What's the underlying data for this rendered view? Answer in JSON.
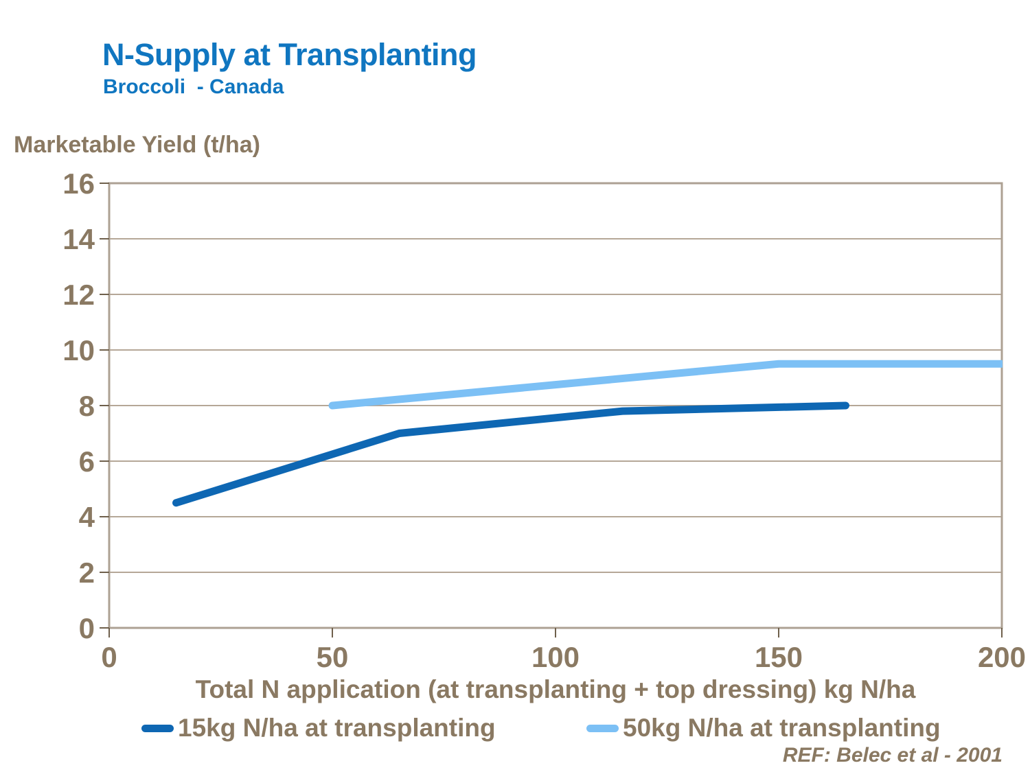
{
  "header": {
    "title": "N-Supply at Transplanting",
    "subtitle": "Broccoli  - Canada"
  },
  "chart_data": {
    "type": "line",
    "title": "N-Supply at Transplanting",
    "subtitle": "Broccoli - Canada",
    "ylabel": "Marketable Yield (t/ha)",
    "xlabel": "Total N application (at transplanting + top dressing) kg N/ha",
    "xlim": [
      0,
      200
    ],
    "ylim": [
      0,
      16
    ],
    "x_ticks": [
      0,
      50,
      100,
      150,
      200
    ],
    "y_ticks": [
      0,
      2,
      4,
      6,
      8,
      10,
      12,
      14,
      16
    ],
    "grid": "horizontal-only",
    "legend_position": "bottom",
    "series": [
      {
        "name": "15kg N/ha at transplanting",
        "color": "#0E67B3",
        "x": [
          15,
          65,
          115,
          165
        ],
        "y": [
          4.5,
          7.0,
          7.8,
          8.0
        ]
      },
      {
        "name": "50kg N/ha at transplanting",
        "color": "#7CC0F5",
        "x": [
          50,
          100,
          150,
          200
        ],
        "y": [
          8.0,
          8.75,
          9.5,
          9.5
        ]
      }
    ],
    "annotations": [
      "REF: Belec et al - 2001"
    ]
  },
  "footer": {
    "ref": "REF: Belec et al - 2001"
  },
  "colors": {
    "title_blue": "#1076C0",
    "text_brown": "#8A7962",
    "grid_line": "#B5A797",
    "axis_border": "#ADA193",
    "tick_mark": "#6F604C",
    "background": "#FFFFFF"
  }
}
